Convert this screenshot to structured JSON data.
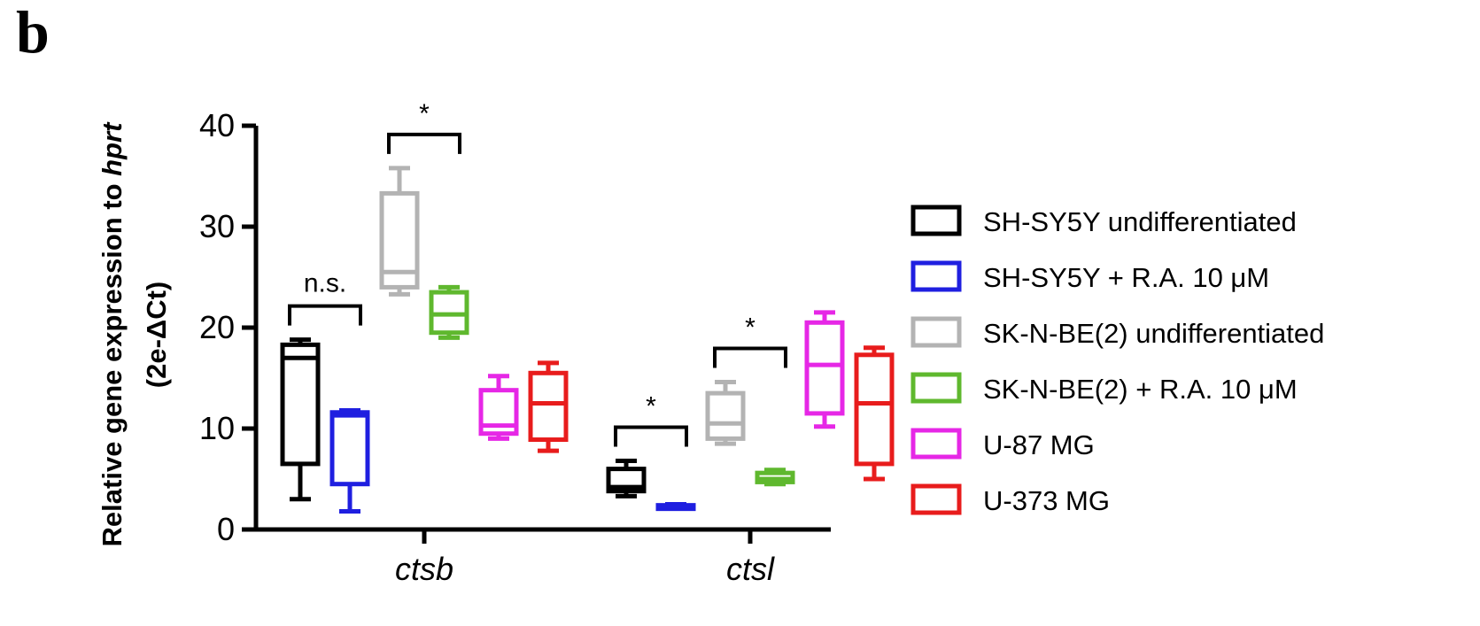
{
  "panel_label": "b",
  "chart_data": {
    "type": "boxplot",
    "title": "",
    "ylabel_parts": [
      "Relative gene expression to ",
      "hprt"
    ],
    "ylabel_line2": "(2e-ΔCt)",
    "xlabel": "",
    "ylim": [
      0,
      40
    ],
    "yticks": [
      0,
      10,
      20,
      30,
      40
    ],
    "categories": [
      "ctsb",
      "ctsl"
    ],
    "legend_position": "right",
    "series": [
      {
        "name": "SH-SY5Y undifferentiated",
        "color": "#000000",
        "boxes": [
          {
            "min": 3.0,
            "q1": 6.5,
            "median": 17.0,
            "q3": 18.3,
            "max": 18.8
          },
          {
            "min": 3.3,
            "q1": 3.8,
            "median": 4.2,
            "q3": 6.0,
            "max": 6.8
          }
        ]
      },
      {
        "name": "SH-SY5Y + R.A. 10 μM",
        "color": "#1f1fe0",
        "boxes": [
          {
            "min": 1.8,
            "q1": 4.5,
            "median": 11.3,
            "q3": 11.6,
            "max": 11.8
          },
          {
            "min": 2.1,
            "q1": 2.2,
            "median": 2.3,
            "q3": 2.4,
            "max": 2.5
          }
        ]
      },
      {
        "name": "SK-N-BE(2) undifferentiated",
        "color": "#b3b3b3",
        "boxes": [
          {
            "min": 23.3,
            "q1": 24.0,
            "median": 25.5,
            "q3": 33.3,
            "max": 35.8
          },
          {
            "min": 8.5,
            "q1": 9.0,
            "median": 10.5,
            "q3": 13.5,
            "max": 14.6
          }
        ]
      },
      {
        "name": "SK-N-BE(2) + R.A. 10 μM",
        "color": "#5fb82e",
        "boxes": [
          {
            "min": 19.0,
            "q1": 19.5,
            "median": 21.3,
            "q3": 23.5,
            "max": 24.0
          },
          {
            "min": 4.5,
            "q1": 4.7,
            "median": 5.0,
            "q3": 5.6,
            "max": 5.9
          }
        ]
      },
      {
        "name": "U-87 MG",
        "color": "#e627e6",
        "boxes": [
          {
            "min": 9.0,
            "q1": 9.5,
            "median": 10.3,
            "q3": 13.8,
            "max": 15.2
          },
          {
            "min": 10.2,
            "q1": 11.5,
            "median": 16.3,
            "q3": 20.5,
            "max": 21.5
          }
        ]
      },
      {
        "name": "U-373 MG",
        "color": "#e81c1c",
        "boxes": [
          {
            "min": 7.8,
            "q1": 8.9,
            "median": 12.5,
            "q3": 15.5,
            "max": 16.5
          },
          {
            "min": 5.0,
            "q1": 6.5,
            "median": 12.5,
            "q3": 17.3,
            "max": 18.0
          }
        ]
      }
    ],
    "annotations": [
      {
        "text": "n.s.",
        "between": [
          0,
          1
        ],
        "category": 0
      },
      {
        "text": "*",
        "between": [
          2,
          3
        ],
        "category": 0
      },
      {
        "text": "*",
        "between": [
          0,
          1
        ],
        "category": 1
      },
      {
        "text": "*",
        "between": [
          2,
          3
        ],
        "category": 1
      }
    ]
  }
}
